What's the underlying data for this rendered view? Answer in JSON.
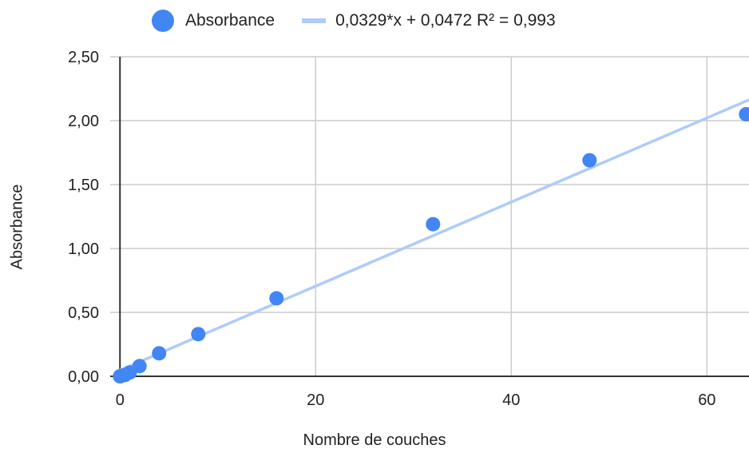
{
  "chart_data": {
    "type": "scatter",
    "xlabel": "Nombre de couches",
    "ylabel": "Absorbance",
    "xlim": [
      -1,
      64.3
    ],
    "ylim": [
      0,
      2.5
    ],
    "x_ticks": [
      "0",
      "20",
      "40",
      "60"
    ],
    "x_tick_values": [
      0,
      20,
      40,
      60
    ],
    "y_ticks": [
      "0,00",
      "0,50",
      "1,00",
      "1,50",
      "2,00",
      "2,50"
    ],
    "y_tick_values": [
      0,
      0.5,
      1.0,
      1.5,
      2.0,
      2.5
    ],
    "grid": true,
    "legend_position": "top",
    "series": [
      {
        "name": "Absorbance",
        "color": "#4285f4",
        "x": [
          0,
          0.5,
          1,
          2,
          4,
          8,
          16,
          32,
          48,
          64
        ],
        "y": [
          0.0,
          0.01,
          0.03,
          0.08,
          0.18,
          0.33,
          0.61,
          1.19,
          1.69,
          2.05
        ]
      }
    ],
    "trendline": {
      "label": "0,0329*x + 0,0472 R² = 0,993",
      "slope": 0.0329,
      "intercept": 0.0472,
      "r2": 0.993,
      "color": "#aecbfa"
    }
  }
}
